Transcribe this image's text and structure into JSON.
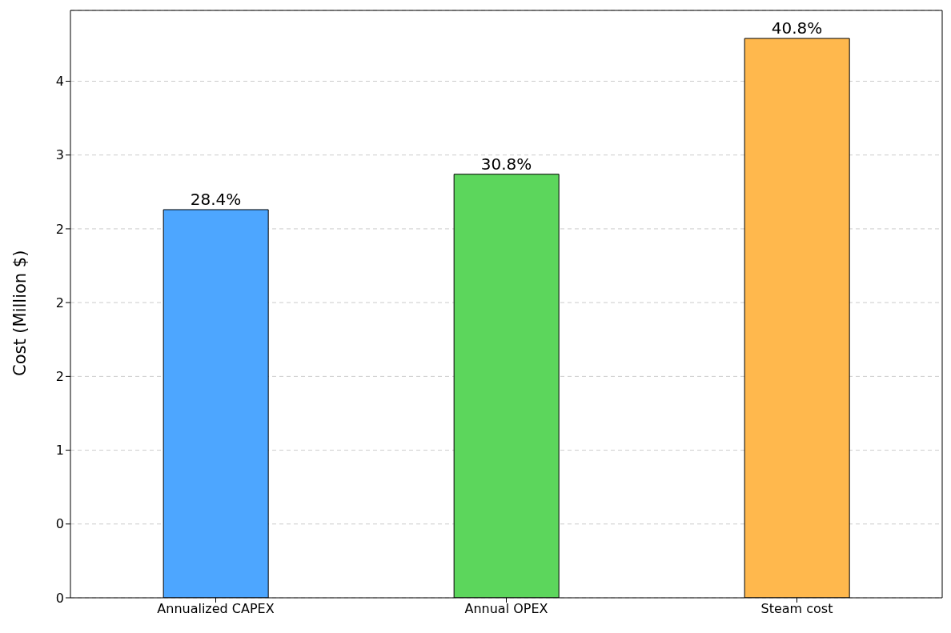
{
  "chart_data": {
    "type": "bar",
    "ylabel": "Cost (Million $)",
    "categories": [
      "Annualized CAPEX",
      "Annual OPEX",
      "Steam cost"
    ],
    "values": [
      2.63,
      2.87,
      3.79
    ],
    "colors": [
      "#4da6ff",
      "#5cd65c",
      "#ffb84d"
    ],
    "annotations": [
      {
        "text": "28.4%",
        "x": "Annualized CAPEX",
        "y": 2.63
      },
      {
        "text": "30.8%",
        "x": "Annual OPEX",
        "y": 2.87
      },
      {
        "text": "40.8%",
        "x": "Steam cost",
        "y": 3.79
      }
    ],
    "ylim": [
      0,
      3.98
    ],
    "yticks": [
      0,
      {
        "value": 0.5,
        "label": "0"
      },
      1,
      {
        "value": 1.5,
        "label": "2"
      },
      2,
      {
        "value": 2.5,
        "label": "2"
      },
      3,
      {
        "value": 3.5,
        "label": "4"
      }
    ],
    "grid": "y"
  }
}
